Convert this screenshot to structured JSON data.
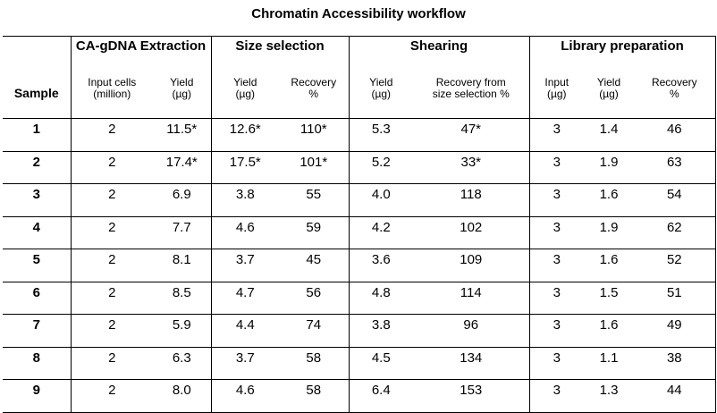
{
  "title": "Chromatin Accessibility workflow",
  "groups": {
    "extraction": "CA-gDNA Extraction",
    "size_selection": "Size selection",
    "shearing": "Shearing",
    "library": "Library preparation"
  },
  "columns": {
    "sample": "Sample",
    "input_cells_1": "Input cells",
    "input_cells_2": "(million)",
    "ext_yield_1": "Yield",
    "ext_yield_2": "(µg)",
    "ss_yield_1": "Yield",
    "ss_yield_2": "(µg)",
    "ss_recovery_1": "Recovery",
    "ss_recovery_2": "%",
    "sh_yield_1": "Yield",
    "sh_yield_2": "(µg)",
    "sh_recovery_1": "Recovery from",
    "sh_recovery_2": "size selection %",
    "lib_input_1": "Input",
    "lib_input_2": "(µg)",
    "lib_yield_1": "Yield",
    "lib_yield_2": "(µg)",
    "lib_recovery_1": "Recovery",
    "lib_recovery_2": "%"
  },
  "rows": [
    [
      "1",
      "2",
      "11.5*",
      "12.6*",
      "110*",
      "5.3",
      "47*",
      "3",
      "1.4",
      "46"
    ],
    [
      "2",
      "2",
      "17.4*",
      "17.5*",
      "101*",
      "5.2",
      "33*",
      "3",
      "1.9",
      "63"
    ],
    [
      "3",
      "2",
      "6.9",
      "3.8",
      "55",
      "4.0",
      "118",
      "3",
      "1.6",
      "54"
    ],
    [
      "4",
      "2",
      "7.7",
      "4.6",
      "59",
      "4.2",
      "102",
      "3",
      "1.9",
      "62"
    ],
    [
      "5",
      "2",
      "8.1",
      "3.7",
      "45",
      "3.6",
      "109",
      "3",
      "1.6",
      "52"
    ],
    [
      "6",
      "2",
      "8.5",
      "4.7",
      "56",
      "4.8",
      "114",
      "3",
      "1.5",
      "51"
    ],
    [
      "7",
      "2",
      "5.9",
      "4.4",
      "74",
      "3.8",
      "96",
      "3",
      "1.6",
      "49"
    ],
    [
      "8",
      "2",
      "6.3",
      "3.7",
      "58",
      "4.5",
      "134",
      "3",
      "1.1",
      "38"
    ],
    [
      "9",
      "2",
      "8.0",
      "4.6",
      "58",
      "6.4",
      "153",
      "3",
      "1.3",
      "44"
    ]
  ]
}
